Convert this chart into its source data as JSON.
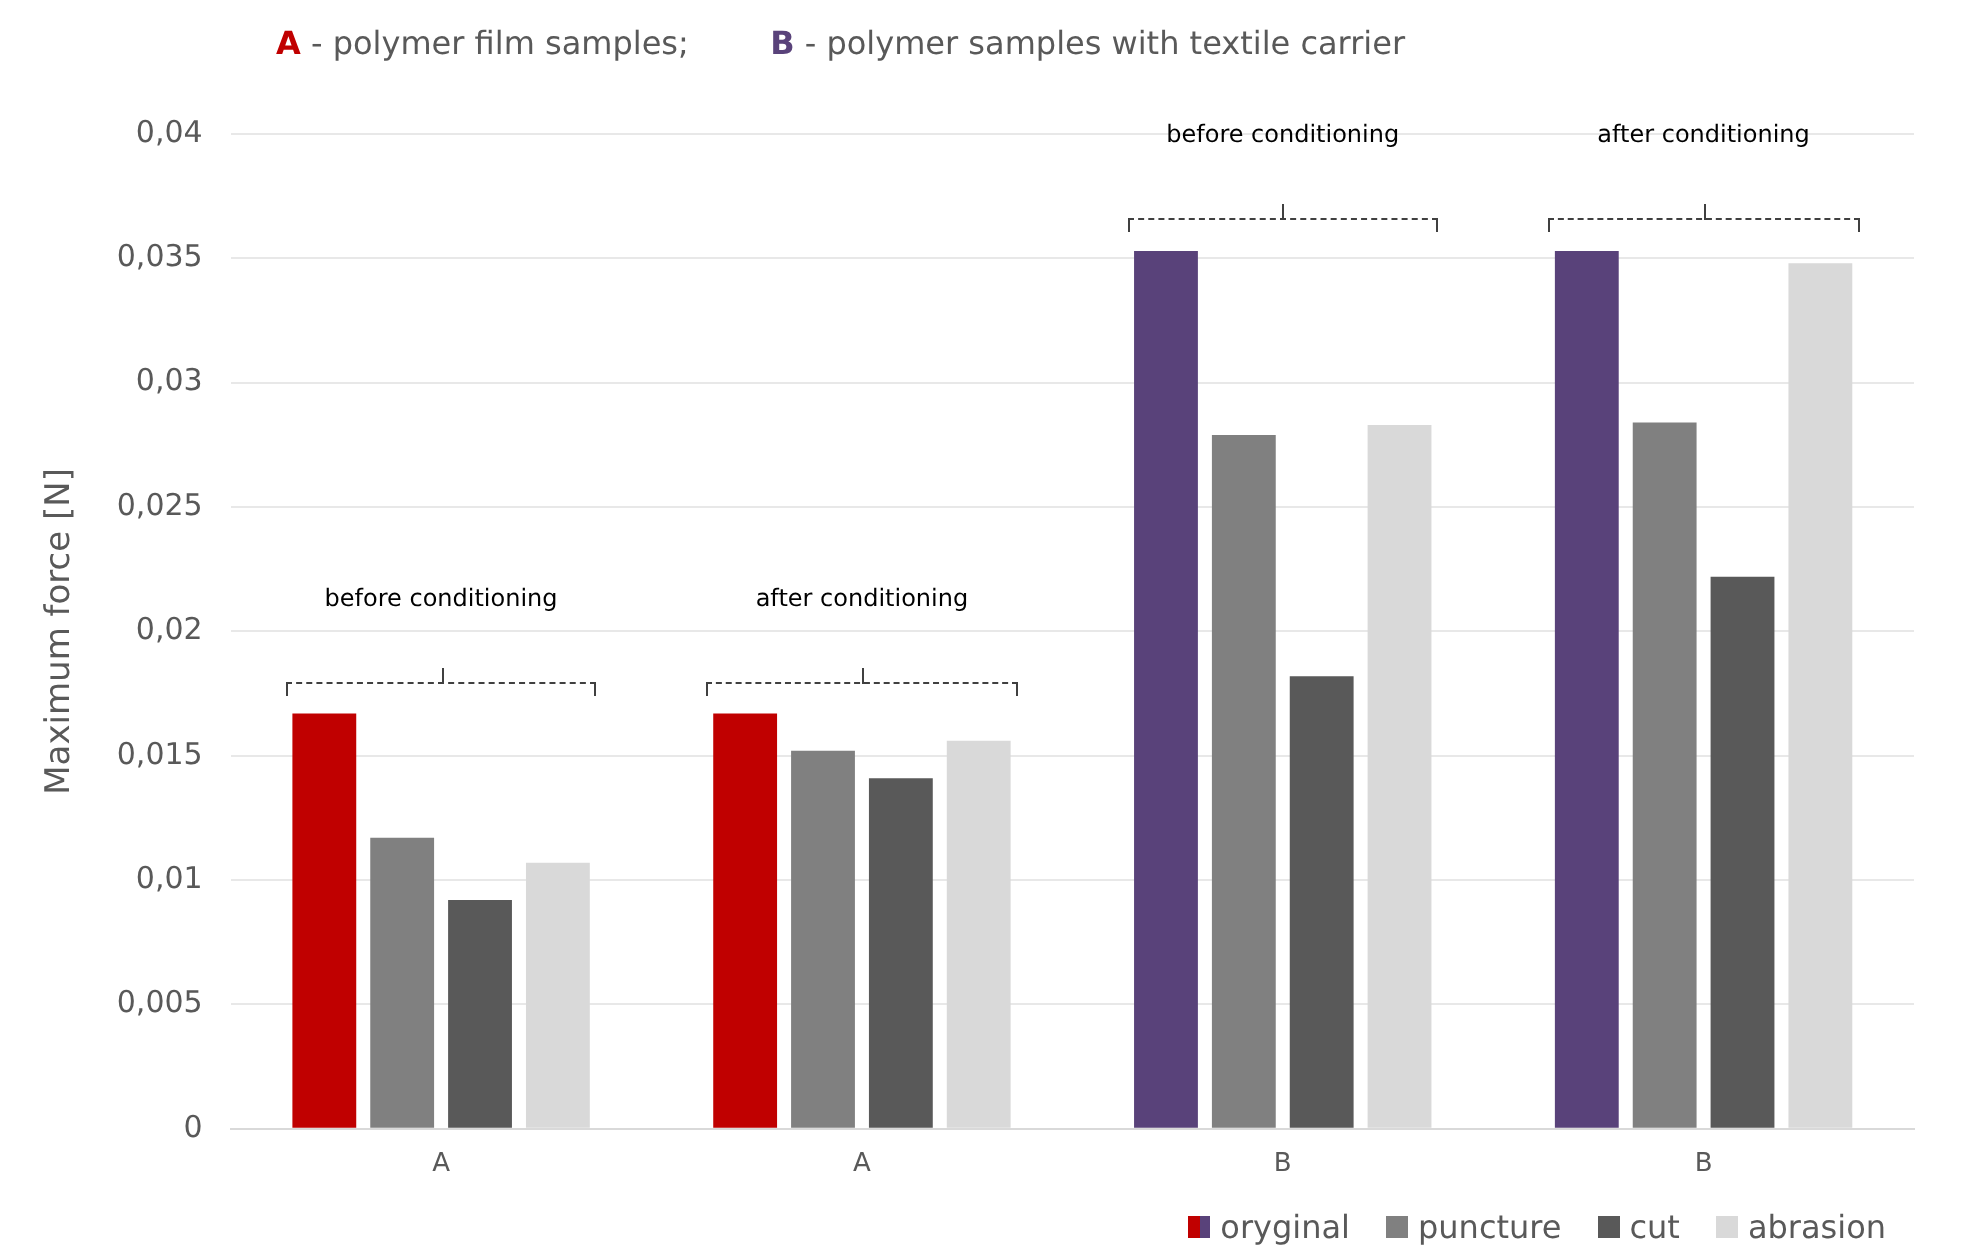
{
  "chart_data": {
    "type": "bar",
    "title": "A - polymer film samples;        B - polymer samples with textile carrier",
    "ylabel": "Maximum force [N]",
    "categories": [
      "A",
      "A",
      "B",
      "B"
    ],
    "series": [
      {
        "name": "oryginal",
        "colors": [
          "#c00000",
          "#c00000",
          "#59427a",
          "#59427a"
        ],
        "values": [
          0.0167,
          0.0167,
          0.0353,
          0.0353
        ]
      },
      {
        "name": "puncture",
        "color": "#808080",
        "values": [
          0.0117,
          0.0152,
          0.0279,
          0.0284
        ]
      },
      {
        "name": "cut",
        "color": "#595959",
        "values": [
          0.0092,
          0.0141,
          0.0182,
          0.0222
        ]
      },
      {
        "name": "abrasion",
        "color": "#d9d9d9",
        "values": [
          0.0107,
          0.0156,
          0.0283,
          0.0348
        ]
      }
    ],
    "ylim": [
      0,
      0.04
    ],
    "yticks": [
      {
        "value": 0,
        "label": "0"
      },
      {
        "value": 0.005,
        "label": "0,005"
      },
      {
        "value": 0.01,
        "label": "0,01"
      },
      {
        "value": 0.015,
        "label": "0,015"
      },
      {
        "value": 0.02,
        "label": "0,02"
      },
      {
        "value": 0.025,
        "label": "0,025"
      },
      {
        "value": 0.03,
        "label": "0,03"
      },
      {
        "value": 0.035,
        "label": "0,035"
      },
      {
        "value": 0.04,
        "label": "0,04"
      }
    ],
    "annotations": [
      "before conditioning",
      "after conditioning",
      "before conditioning",
      "after conditioning"
    ],
    "grid": "y",
    "legend": "bottom right"
  }
}
